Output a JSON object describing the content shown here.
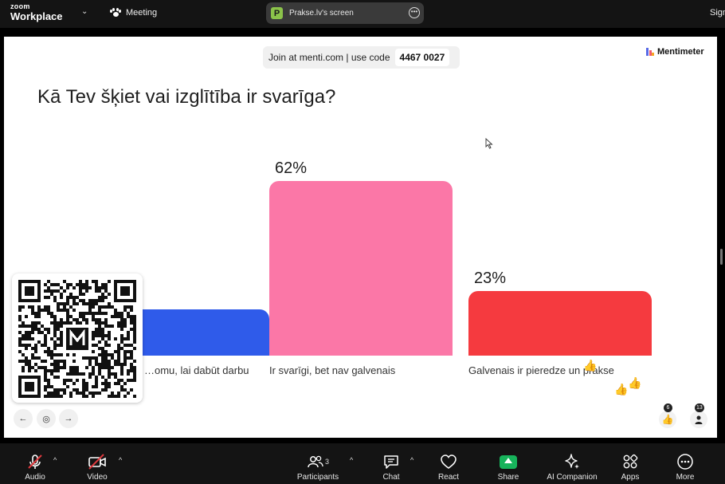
{
  "topbar": {
    "brand_small": "zoom",
    "brand_large": "Workplace",
    "meeting_label": "Meeting",
    "share_title": "Prakse.lv's screen",
    "share_app_letter": "P",
    "sign_text": "Sign"
  },
  "slide": {
    "join_text": "Join at menti.com | use code",
    "join_code": "4467 0027",
    "logo_text": "Mentimeter",
    "question": "Kā Tev šķiet vai izglītība ir svarīga?"
  },
  "chart_data": {
    "type": "bar",
    "categories": [
      "…omu, lai dabūt darbu",
      "Ir svarīgi, bet nav galvenais",
      "Galvenais ir pieredze un prakse"
    ],
    "values": [
      null,
      62,
      23
    ],
    "value_labels": [
      "",
      "62%",
      "23%"
    ],
    "colors": [
      "#2f5bea",
      "#fb77a7",
      "#f53a3f"
    ],
    "unit": "%"
  },
  "controls": {
    "prev_symbol": "←",
    "pin_symbol": "◎",
    "next_symbol": "→",
    "reactions_count": "6",
    "participants_count": "13"
  },
  "toolbar": {
    "audio": "Audio",
    "video": "Video",
    "participants": "Participants",
    "participants_count": "3",
    "chat": "Chat",
    "react": "React",
    "share": "Share",
    "ai_companion": "AI Companion",
    "apps": "Apps",
    "more": "More"
  },
  "colors": {
    "zoom_bar": "#141414",
    "share_green": "#17b35b",
    "mute_red": "#e0393e"
  }
}
